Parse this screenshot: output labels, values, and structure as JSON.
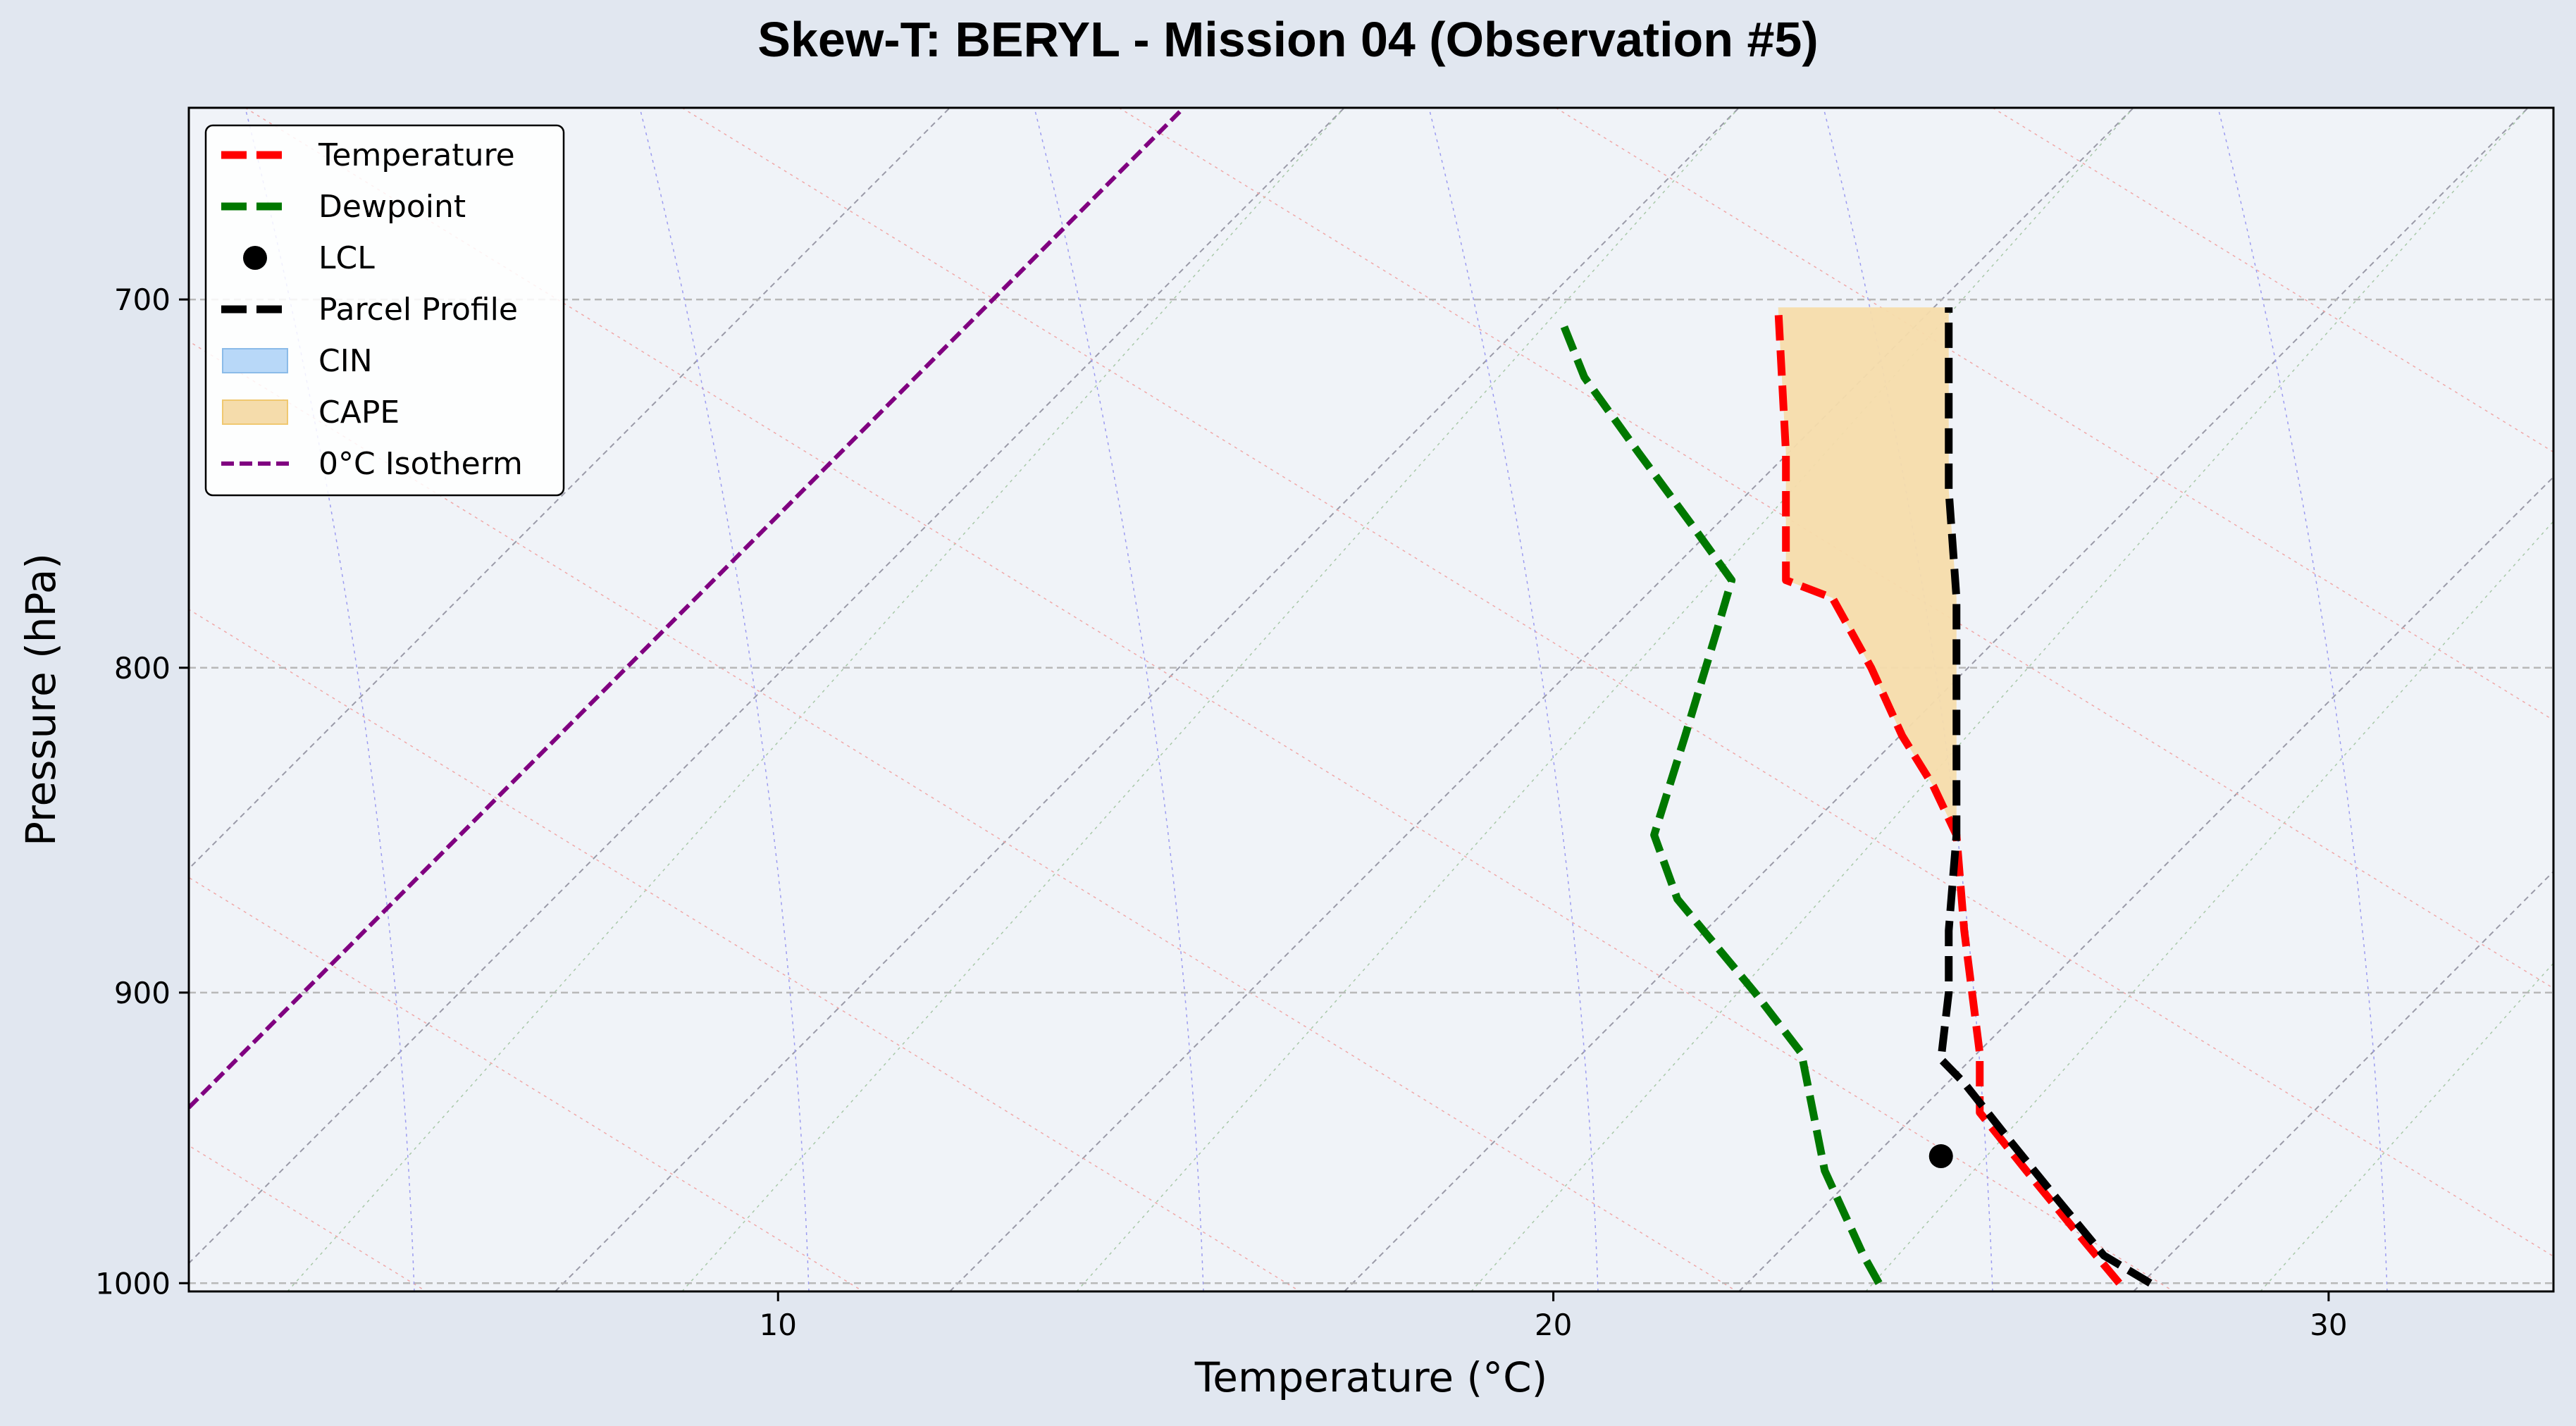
{
  "chart_data": {
    "type": "line",
    "title": "Skew-T: BERYL - Mission 04 (Observation #5)",
    "xlabel": "Temperature (°C)",
    "ylabel": "Pressure (hPa)",
    "xlim": [
      2.4,
      32.9
    ],
    "ylim": [
      1003,
      653
    ],
    "y_scale": "log",
    "x_ticks": [
      10,
      20,
      30
    ],
    "y_ticks": [
      700,
      800,
      900,
      1000
    ],
    "grid": true,
    "legend_position": "top-left",
    "series": [
      {
        "name": "Temperature",
        "color": "#ff0000",
        "style": "dashed",
        "points": [
          [
            27.3,
            1000
          ],
          [
            26.7,
            980
          ],
          [
            26.1,
            960
          ],
          [
            25.5,
            940
          ],
          [
            25.5,
            920
          ],
          [
            25.3,
            880
          ],
          [
            25.2,
            850
          ],
          [
            24.9,
            835
          ],
          [
            24.5,
            820
          ],
          [
            24.1,
            800
          ],
          [
            23.6,
            780
          ],
          [
            23.0,
            775
          ],
          [
            23.0,
            740
          ],
          [
            22.9,
            702
          ]
        ]
      },
      {
        "name": "Dewpoint",
        "color": "#007800",
        "style": "dashed",
        "points": [
          [
            24.2,
            1000
          ],
          [
            24.0,
            990
          ],
          [
            23.5,
            960
          ],
          [
            23.2,
            920
          ],
          [
            22.6,
            900
          ],
          [
            21.6,
            870
          ],
          [
            21.3,
            850
          ],
          [
            21.7,
            820
          ],
          [
            22.1,
            790
          ],
          [
            22.3,
            775
          ],
          [
            21.8,
            760
          ],
          [
            21.1,
            740
          ],
          [
            20.4,
            720
          ],
          [
            20.1,
            705
          ]
        ]
      },
      {
        "name": "Parcel Profile",
        "color": "#000000",
        "style": "dashed",
        "points": [
          [
            27.7,
            1000
          ],
          [
            27.1,
            990
          ],
          [
            26.5,
            970
          ],
          [
            25.9,
            950
          ],
          [
            25.3,
            930
          ],
          [
            25.0,
            922
          ],
          [
            25.1,
            900
          ],
          [
            25.1,
            880
          ],
          [
            25.2,
            850
          ],
          [
            25.2,
            820
          ],
          [
            25.2,
            800
          ],
          [
            25.2,
            780
          ],
          [
            25.1,
            750
          ],
          [
            25.1,
            702
          ]
        ]
      }
    ],
    "lcl": {
      "name": "LCL",
      "t": 25.0,
      "p": 955
    },
    "cape": {
      "name": "CAPE",
      "color": "#f5dcab",
      "p_range": [
        702,
        850
      ]
    },
    "cin": {
      "name": "CIN",
      "color": "#b8d8f8"
    },
    "isotherm_0c": {
      "name": "0°C Isotherm",
      "color": "#800080",
      "t": 0
    },
    "legend": [
      "Temperature",
      "Dewpoint",
      "LCL",
      "Parcel Profile",
      "CIN",
      "CAPE",
      "0°C Isotherm"
    ]
  }
}
